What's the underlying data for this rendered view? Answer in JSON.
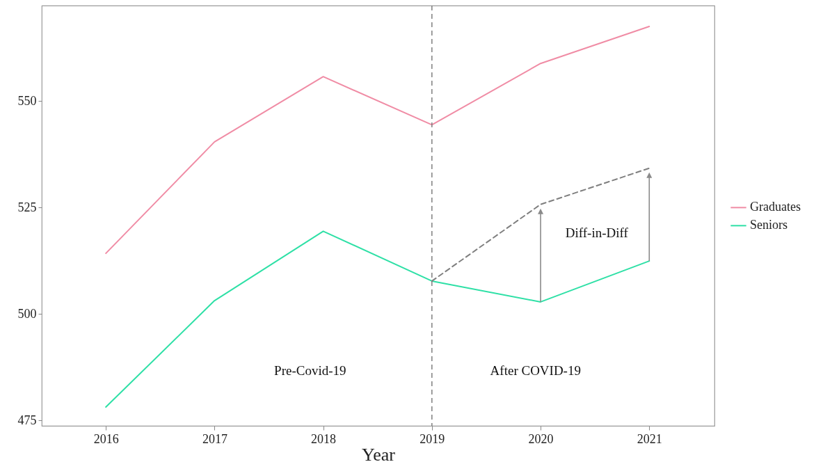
{
  "chart_data": {
    "type": "line",
    "xlabel": "Year",
    "x": [
      2016,
      2017,
      2018,
      2019,
      2020,
      2021
    ],
    "series": [
      {
        "name": "Graduates",
        "color": "#f08ca5",
        "values": [
          514.2,
          540.4,
          555.7,
          544.4,
          558.8,
          567.5
        ]
      },
      {
        "name": "Seniors",
        "color": "#2ee0a6",
        "values": [
          478.1,
          503.1,
          519.4,
          507.7,
          502.8,
          512.4
        ]
      },
      {
        "color": "#7f7f7f",
        "line_style": "dashed",
        "x": [
          2019,
          2020,
          2021
        ],
        "values": [
          507.7,
          525.7,
          534.2
        ]
      }
    ],
    "xlim": [
      2015.41,
      2021.6
    ],
    "xticks": [
      2016,
      2017,
      2018,
      2019,
      2020,
      2021
    ],
    "ylim": [
      473.7,
      572.4
    ],
    "yticks": [
      475,
      500,
      525,
      550
    ],
    "grid": false,
    "legend": "right",
    "marker": "none",
    "line_style": "solid",
    "ref_lines": [
      {
        "axis": "x",
        "value": 2019,
        "color": "#7f7f7f",
        "line_style": "dashed"
      }
    ],
    "annotations": [
      "Pre-Covid-19",
      "After COVID-19",
      "Diff-in-Diff"
    ]
  }
}
